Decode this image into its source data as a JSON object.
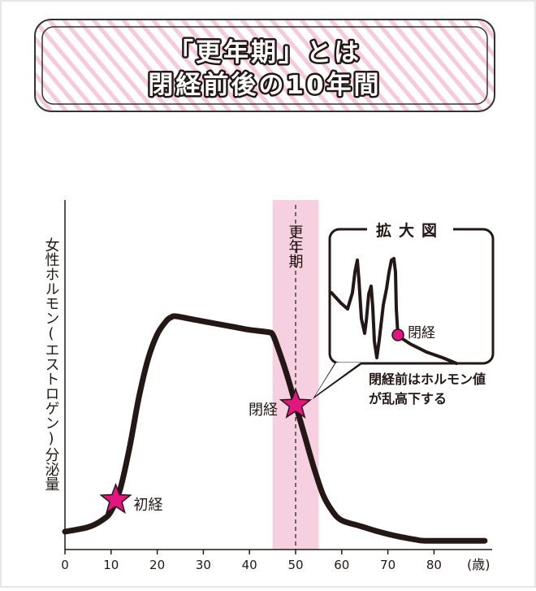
{
  "title": {
    "line1": "「更年期」とは",
    "line2": "閉経前後の10年間"
  },
  "colors": {
    "pink_band": "#f6cfe0",
    "star": "#e3157e",
    "stripe": "#f7c9dc",
    "curve": "#231815",
    "frame": "#333333"
  },
  "chart_data": {
    "type": "line",
    "xlabel": "",
    "x_unit": "(歳)",
    "ylabel": "女性ホルモン(エストロゲン)分泌量",
    "xlim": [
      0,
      92
    ],
    "ylim": [
      0,
      100
    ],
    "x_ticks": [
      0,
      10,
      20,
      30,
      40,
      50,
      60,
      70,
      80
    ],
    "x_tick_labels": [
      "0",
      "10",
      "20",
      "30",
      "40",
      "50",
      "60",
      "70",
      "80"
    ],
    "series": [
      {
        "x": [
          0,
          5,
          8,
          10,
          12,
          14,
          16,
          18,
          20,
          22,
          23,
          24,
          28,
          32,
          36,
          40,
          44,
          45,
          46,
          48,
          50,
          52,
          54,
          56,
          58,
          60,
          64,
          68,
          72,
          76,
          78,
          85,
          91
        ],
        "y": [
          5,
          7,
          10,
          14,
          24,
          42,
          64,
          81,
          92,
          98,
          99.5,
          100,
          98.5,
          97,
          95.5,
          94,
          93,
          92,
          87,
          75,
          61,
          47,
          33,
          21,
          14,
          10,
          7.5,
          5,
          3,
          1.5,
          1,
          1,
          1
        ]
      }
    ],
    "band": {
      "x_start": 45,
      "x_end": 55,
      "center": 50,
      "label": "更年期"
    },
    "markers": [
      {
        "x": 11,
        "y": 19,
        "label": "初経",
        "label_side": "right"
      },
      {
        "x": 50,
        "y": 61,
        "label": "閉経",
        "label_side": "left"
      }
    ],
    "inset": {
      "title": "拡大図",
      "marker_label": "閉経",
      "note_line1": "閉経前はホルモン値",
      "note_line2": "が乱高下する"
    },
    "grid": false,
    "legend": "none"
  }
}
